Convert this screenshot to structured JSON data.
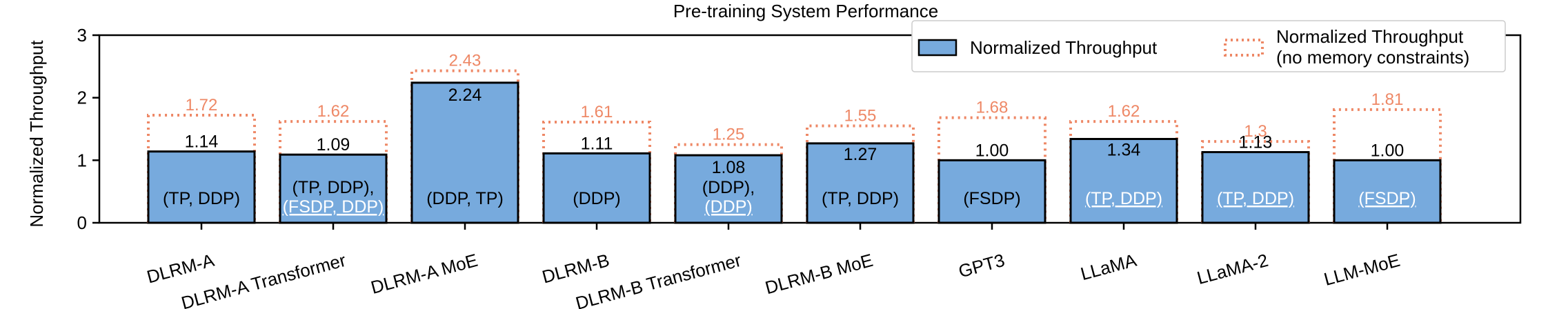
{
  "chart_data": {
    "type": "bar",
    "title": "Pre-training System Performance",
    "xlabel": "",
    "ylabel": "Normalized Throughput",
    "ylim": [
      0,
      3
    ],
    "yticks": [
      "0",
      "1",
      "2",
      "3"
    ],
    "legend_position": "top-right",
    "categories": [
      "DLRM-A",
      "DLRM-A Transformer",
      "DLRM-A MoE",
      "DLRM-B",
      "DLRM-B Transformer",
      "DLRM-B MoE",
      "GPT3",
      "LLaMA",
      "LLaMA-2",
      "LLM-MoE"
    ],
    "series": [
      {
        "name": "Normalized Throughput",
        "values": [
          1.14,
          1.09,
          2.24,
          1.11,
          1.08,
          1.27,
          1.0,
          1.34,
          1.13,
          1.0
        ],
        "labels": [
          "1.14",
          "1.09",
          "2.24",
          "1.11",
          "1.08",
          "1.27",
          "1.00",
          "1.34",
          "1.13",
          "1.00"
        ]
      },
      {
        "name": "Normalized Throughput (no memory constraints)",
        "name_lines": [
          "Normalized Throughput",
          "(no memory constraints)"
        ],
        "values": [
          1.72,
          1.62,
          2.43,
          1.61,
          1.25,
          1.55,
          1.68,
          1.62,
          1.3,
          1.81
        ],
        "labels": [
          "1.72",
          "1.62",
          "2.43",
          "1.61",
          "1.25",
          "1.55",
          "1.68",
          "1.62",
          "1.3",
          "1.81"
        ]
      }
    ],
    "parallelism": [
      {
        "lines": [
          {
            "text": "(TP, DDP)",
            "white": false
          }
        ]
      },
      {
        "lines": [
          {
            "text": "(TP, DDP),",
            "white": false
          },
          {
            "text": "(FSDP, DDP)",
            "white": true
          }
        ]
      },
      {
        "lines": [
          {
            "text": "(DDP, TP)",
            "white": false
          }
        ]
      },
      {
        "lines": [
          {
            "text": "(DDP)",
            "white": false
          }
        ]
      },
      {
        "lines": [
          {
            "text": "(DDP),",
            "white": false
          },
          {
            "text": "(DDP)",
            "white": true
          }
        ]
      },
      {
        "lines": [
          {
            "text": "(TP, DDP)",
            "white": false
          }
        ]
      },
      {
        "lines": [
          {
            "text": "(FSDP)",
            "white": false
          }
        ]
      },
      {
        "lines": [
          {
            "text": "(TP, DDP)",
            "white": true
          }
        ]
      },
      {
        "lines": [
          {
            "text": "(TP, DDP)",
            "white": true
          }
        ]
      },
      {
        "lines": [
          {
            "text": "(FSDP)",
            "white": true
          }
        ]
      }
    ]
  },
  "colors": {
    "bar_fill": "#77aadd",
    "bar_edge": "#000000",
    "dotted_line": "#ee8866",
    "alt_label": "#ee8866"
  }
}
